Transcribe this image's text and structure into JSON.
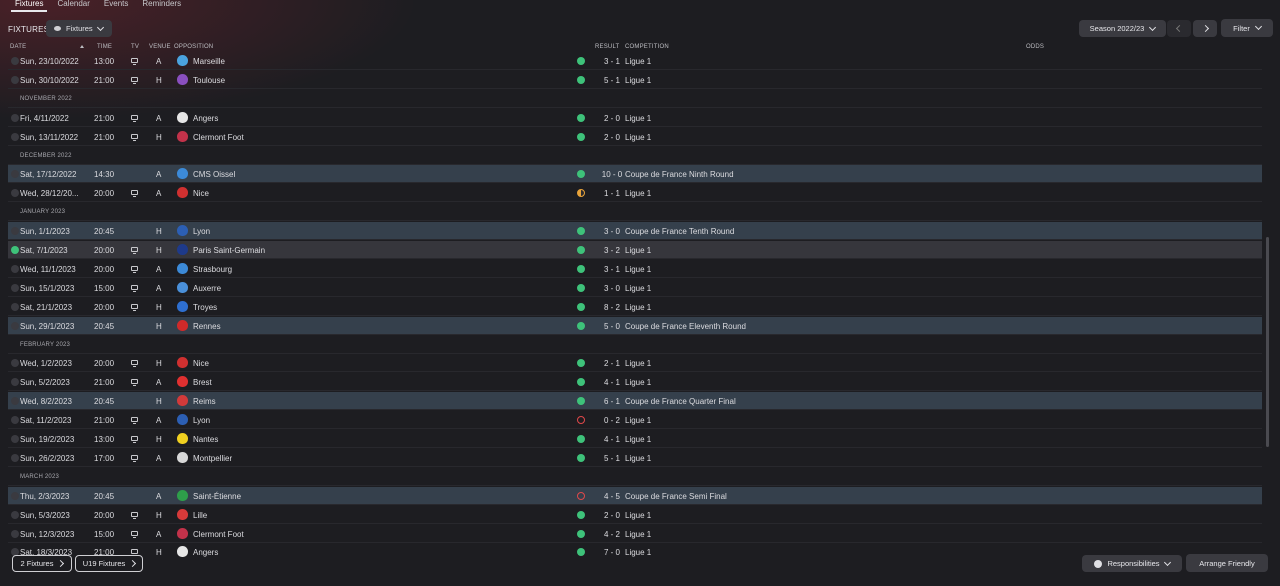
{
  "tabs": [
    {
      "label": "Fixtures",
      "active": true
    },
    {
      "label": "Calendar",
      "active": false
    },
    {
      "label": "Events",
      "active": false
    },
    {
      "label": "Reminders",
      "active": false
    }
  ],
  "header": {
    "title": "FIXTURES",
    "view_label": "Fixtures",
    "season_label": "Season 2022/23",
    "filter_label": "Filter"
  },
  "columns": {
    "date": "DATE",
    "time": "TIME",
    "tv": "TV",
    "venue": "VENUE",
    "opposition": "OPPOSITION",
    "result": "RESULT",
    "competition": "COMPETITION",
    "odds": "ODDS"
  },
  "colors": {
    "win": "#3ec27a",
    "draw": "#e8a33a",
    "loss": "#e0484a",
    "highlight_row": "#35404c"
  },
  "entries": [
    {
      "kind": "match",
      "date": "Sun, 23/10/2022",
      "time": "13:00",
      "tv": true,
      "venue": "A",
      "opponent": "Marseille",
      "badge": "#4aa3df",
      "outcome": "win",
      "score": "3 - 1",
      "competition": "Ligue 1"
    },
    {
      "kind": "match",
      "date": "Sun, 30/10/2022",
      "time": "21:00",
      "tv": true,
      "venue": "H",
      "opponent": "Toulouse",
      "badge": "#8a4fbf",
      "outcome": "win",
      "score": "5 - 1",
      "competition": "Ligue 1"
    },
    {
      "kind": "month",
      "label": "NOVEMBER 2022"
    },
    {
      "kind": "match",
      "date": "Fri, 4/11/2022",
      "time": "21:00",
      "tv": true,
      "venue": "A",
      "opponent": "Angers",
      "badge": "#e6e6e6",
      "outcome": "win",
      "score": "2 - 0",
      "competition": "Ligue 1"
    },
    {
      "kind": "match",
      "date": "Sun, 13/11/2022",
      "time": "21:00",
      "tv": true,
      "venue": "H",
      "opponent": "Clermont Foot",
      "badge": "#c2324a",
      "outcome": "win",
      "score": "2 - 0",
      "competition": "Ligue 1"
    },
    {
      "kind": "month",
      "label": "DECEMBER 2022"
    },
    {
      "kind": "match",
      "highlight": true,
      "date": "Sat, 17/12/2022",
      "time": "14:30",
      "tv": false,
      "venue": "A",
      "opponent": "CMS Oissel",
      "badge": "#3c8ad8",
      "outcome": "win",
      "score": "10 - 0",
      "competition": "Coupe de France Ninth Round"
    },
    {
      "kind": "match",
      "date": "Wed, 28/12/20...",
      "time": "20:00",
      "tv": true,
      "venue": "A",
      "opponent": "Nice",
      "badge": "#d03030",
      "outcome": "draw",
      "score": "1 - 1",
      "competition": "Ligue 1"
    },
    {
      "kind": "month",
      "label": "JANUARY 2023"
    },
    {
      "kind": "match",
      "highlight": true,
      "date": "Sun, 1/1/2023",
      "time": "20:45",
      "tv": false,
      "venue": "H",
      "opponent": "Lyon",
      "badge": "#2c5fb4",
      "outcome": "win",
      "score": "3 - 0",
      "competition": "Coupe de France Tenth Round"
    },
    {
      "kind": "match",
      "current": true,
      "date": "Sat, 7/1/2023",
      "time": "20:00",
      "tv": true,
      "venue": "H",
      "opponent": "Paris Saint-Germain",
      "badge": "#1e3a8a",
      "outcome": "win",
      "score": "3 - 2",
      "competition": "Ligue 1"
    },
    {
      "kind": "match",
      "date": "Wed, 11/1/2023",
      "time": "20:00",
      "tv": true,
      "venue": "A",
      "opponent": "Strasbourg",
      "badge": "#3c8ad8",
      "outcome": "win",
      "score": "3 - 1",
      "competition": "Ligue 1"
    },
    {
      "kind": "match",
      "date": "Sun, 15/1/2023",
      "time": "15:00",
      "tv": true,
      "venue": "A",
      "opponent": "Auxerre",
      "badge": "#4a90d9",
      "outcome": "win",
      "score": "3 - 0",
      "competition": "Ligue 1"
    },
    {
      "kind": "match",
      "date": "Sat, 21/1/2023",
      "time": "20:00",
      "tv": true,
      "venue": "H",
      "opponent": "Troyes",
      "badge": "#2e6fd0",
      "outcome": "win",
      "score": "8 - 2",
      "competition": "Ligue 1"
    },
    {
      "kind": "match",
      "highlight": true,
      "date": "Sun, 29/1/2023",
      "time": "20:45",
      "tv": false,
      "venue": "H",
      "opponent": "Rennes",
      "badge": "#d02a2a",
      "outcome": "win",
      "score": "5 - 0",
      "competition": "Coupe de France Eleventh Round"
    },
    {
      "kind": "month",
      "label": "FEBRUARY 2023"
    },
    {
      "kind": "match",
      "date": "Wed, 1/2/2023",
      "time": "20:00",
      "tv": true,
      "venue": "H",
      "opponent": "Nice",
      "badge": "#d03030",
      "outcome": "win",
      "score": "2 - 1",
      "competition": "Ligue 1"
    },
    {
      "kind": "match",
      "date": "Sun, 5/2/2023",
      "time": "21:00",
      "tv": true,
      "venue": "A",
      "opponent": "Brest",
      "badge": "#e03030",
      "outcome": "win",
      "score": "4 - 1",
      "competition": "Ligue 1"
    },
    {
      "kind": "match",
      "highlight": true,
      "date": "Wed, 8/2/2023",
      "time": "20:45",
      "tv": false,
      "venue": "H",
      "opponent": "Reims",
      "badge": "#d23a3a",
      "outcome": "win",
      "score": "6 - 1",
      "competition": "Coupe de France Quarter Final"
    },
    {
      "kind": "match",
      "date": "Sat, 11/2/2023",
      "time": "21:00",
      "tv": true,
      "venue": "A",
      "opponent": "Lyon",
      "badge": "#2c5fb4",
      "outcome": "loss",
      "score": "0 - 2",
      "competition": "Ligue 1"
    },
    {
      "kind": "match",
      "date": "Sun, 19/2/2023",
      "time": "13:00",
      "tv": true,
      "venue": "H",
      "opponent": "Nantes",
      "badge": "#f0d020",
      "outcome": "win",
      "score": "4 - 1",
      "competition": "Ligue 1"
    },
    {
      "kind": "match",
      "date": "Sun, 26/2/2023",
      "time": "17:00",
      "tv": true,
      "venue": "A",
      "opponent": "Montpellier",
      "badge": "#d8d8d8",
      "outcome": "win",
      "score": "5 - 1",
      "competition": "Ligue 1"
    },
    {
      "kind": "month",
      "label": "MARCH 2023"
    },
    {
      "kind": "match",
      "highlight": true,
      "date": "Thu, 2/3/2023",
      "time": "20:45",
      "tv": false,
      "venue": "A",
      "opponent": "Saint-Étienne",
      "badge": "#2e9e4a",
      "outcome": "loss",
      "score": "4 - 5",
      "competition": "Coupe de France Semi Final"
    },
    {
      "kind": "match",
      "date": "Sun, 5/3/2023",
      "time": "20:00",
      "tv": true,
      "venue": "H",
      "opponent": "Lille",
      "badge": "#d63a3a",
      "outcome": "win",
      "score": "2 - 0",
      "competition": "Ligue 1"
    },
    {
      "kind": "match",
      "date": "Sun, 12/3/2023",
      "time": "15:00",
      "tv": true,
      "venue": "A",
      "opponent": "Clermont Foot",
      "badge": "#c2324a",
      "outcome": "win",
      "score": "4 - 2",
      "competition": "Ligue 1"
    },
    {
      "kind": "match",
      "date": "Sat, 18/3/2023",
      "time": "21:00",
      "tv": true,
      "venue": "H",
      "opponent": "Angers",
      "badge": "#e6e6e6",
      "outcome": "win",
      "score": "7 - 0",
      "competition": "Ligue 1"
    }
  ],
  "footer": {
    "fixtures_label": "2 Fixtures",
    "u19_label": "U19 Fixtures",
    "responsibilities_label": "Responsibilities",
    "arrange_label": "Arrange Friendly"
  }
}
